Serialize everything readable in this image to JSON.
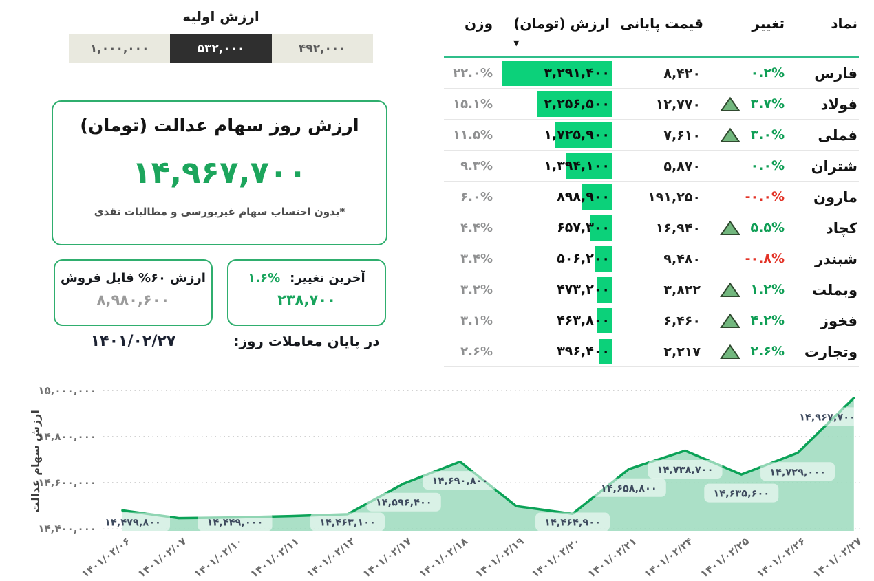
{
  "initial_value": {
    "title": "ارزش اولیه",
    "segments": [
      {
        "value": "۴۹۲,۰۰۰",
        "selected": false
      },
      {
        "value": "۵۳۲,۰۰۰",
        "selected": true
      },
      {
        "value": "۱,۰۰۰,۰۰۰",
        "selected": false
      }
    ]
  },
  "main_card": {
    "title": "ارزش روز سهام عدالت (تومان)",
    "value": "۱۴,۹۶۷,۷۰۰",
    "footnote": "*بدون احتساب سهام غیربورسی و مطالبات نقدی"
  },
  "last_change_box": {
    "label": "آخرین تغییر:",
    "percent": "۱.۶%",
    "amount": "۲۳۸,۷۰۰",
    "caption_below": "در پایان معاملات روز:"
  },
  "sellable_box": {
    "label": "ارزش ۶۰% قابل فروش",
    "amount": "۸,۹۸۰,۶۰۰",
    "date_below": "۱۴۰۱/۰۲/۲۷"
  },
  "table": {
    "headers": {
      "symbol": "نماد",
      "change": "تغییر",
      "close_price": "قیمت پایانی",
      "value": "ارزش (تومان)",
      "weight": "وزن"
    },
    "sort_icon": "▼",
    "sorted_by": "value",
    "max_value": 3291400,
    "rows": [
      {
        "symbol": "فارس",
        "change": "۰.۲%",
        "state": "up",
        "close": "۸,۴۲۰",
        "value": "۳,۲۹۱,۴۰۰",
        "value_num": 3291400,
        "weight": "۲۲.۰%"
      },
      {
        "symbol": "فولاد",
        "change": "۳.۷%",
        "state": "up-arrow",
        "close": "۱۲,۷۷۰",
        "value": "۲,۲۵۶,۵۰۰",
        "value_num": 2256500,
        "weight": "۱۵.۱%"
      },
      {
        "symbol": "فملی",
        "change": "۳.۰%",
        "state": "up-arrow",
        "close": "۷,۶۱۰",
        "value": "۱,۷۲۵,۹۰۰",
        "value_num": 1725900,
        "weight": "۱۱.۵%"
      },
      {
        "symbol": "شتران",
        "change": "۰.۰%",
        "state": "up",
        "close": "۵,۸۷۰",
        "value": "۱,۳۹۴,۱۰۰",
        "value_num": 1394100,
        "weight": "۹.۳%"
      },
      {
        "symbol": "مارون",
        "change": "-۰.۰%",
        "state": "down",
        "close": "۱۹۱,۲۵۰",
        "value": "۸۹۸,۹۰۰",
        "value_num": 898900,
        "weight": "۶.۰%"
      },
      {
        "symbol": "کچاد",
        "change": "۵.۵%",
        "state": "up-arrow",
        "close": "۱۶,۹۴۰",
        "value": "۶۵۷,۳۰۰",
        "value_num": 657300,
        "weight": "۴.۴%"
      },
      {
        "symbol": "شبندر",
        "change": "-۰.۸%",
        "state": "down",
        "close": "۹,۴۸۰",
        "value": "۵۰۶,۲۰۰",
        "value_num": 506200,
        "weight": "۳.۴%"
      },
      {
        "symbol": "وبملت",
        "change": "۱.۲%",
        "state": "up-arrow",
        "close": "۳,۸۲۲",
        "value": "۴۷۳,۲۰۰",
        "value_num": 473200,
        "weight": "۳.۲%"
      },
      {
        "symbol": "فخوز",
        "change": "۴.۲%",
        "state": "up-arrow",
        "close": "۶,۴۶۰",
        "value": "۴۶۳,۸۰۰",
        "value_num": 463800,
        "weight": "۳.۱%"
      },
      {
        "symbol": "وتجارت",
        "change": "۲.۶%",
        "state": "up-arrow",
        "close": "۲,۲۱۷",
        "value": "۳۹۶,۴۰۰",
        "value_num": 396400,
        "weight": "۲.۶%"
      }
    ]
  },
  "chart_data": {
    "type": "area",
    "title": "",
    "xlabel": "",
    "ylabel": "ارزش سهام عدالت",
    "ylim": [
      14400000,
      15000000
    ],
    "grid": "dotted-horizontal",
    "x": [
      "۱۴۰۱/۰۲/۰۶",
      "۱۴۰۱/۰۲/۰۷",
      "۱۴۰۱/۰۲/۱۰",
      "۱۴۰۱/۰۲/۱۱",
      "۱۴۰۱/۰۲/۱۲",
      "۱۴۰۱/۰۲/۱۷",
      "۱۴۰۱/۰۲/۱۸",
      "۱۴۰۱/۰۲/۱۹",
      "۱۴۰۱/۰۲/۲۰",
      "۱۴۰۱/۰۲/۲۱",
      "۱۴۰۱/۰۲/۲۴",
      "۱۴۰۱/۰۲/۲۵",
      "۱۴۰۱/۰۲/۲۶",
      "۱۴۰۱/۰۲/۲۷"
    ],
    "values": [
      14479800,
      14446000,
      14449000,
      14455000,
      14463100,
      14596400,
      14690800,
      14498000,
      14464900,
      14658800,
      14738700,
      14635600,
      14729000,
      14967700
    ],
    "estimated_points": [
      1,
      3,
      7
    ],
    "point_labels": [
      "۱۴,۴۷۹,۸۰۰",
      null,
      "۱۴,۴۴۹,۰۰۰",
      null,
      "۱۴,۴۶۳,۱۰۰",
      "۱۴,۵۹۶,۴۰۰",
      "۱۴,۶۹۰,۸۰۰",
      null,
      "۱۴,۴۶۴,۹۰۰",
      "۱۴,۶۵۸,۸۰۰",
      "۱۴,۷۳۸,۷۰۰",
      "۱۴,۶۳۵,۶۰۰",
      "۱۴,۷۲۹,۰۰۰",
      "۱۴,۹۶۷,۷۰۰"
    ],
    "yticks": {
      "values": [
        15000000,
        14800000,
        14600000,
        14400000
      ],
      "labels": [
        "۱۵,۰۰۰,۰۰۰",
        "۱۴,۸۰۰,۰۰۰",
        "۱۴,۶۰۰,۰۰۰",
        "۱۴,۴۰۰,۰۰۰"
      ]
    }
  },
  "colors": {
    "bar_green": "#0cd17a",
    "line_green": "#0ba257",
    "area_fill": "#9cdabd",
    "label_box": "#ffffff",
    "change_green": "#0f9e55",
    "change_red": "#e33226",
    "border_green": "#2fae6e",
    "header_underline": "#2fbe8a",
    "big_value_green": "#1ca55c",
    "segment_beige": "#e9e9df",
    "segment_selected": "#2f2f2f",
    "weight_gray": "#8f9091",
    "grid_gray": "#c3c3c3"
  }
}
